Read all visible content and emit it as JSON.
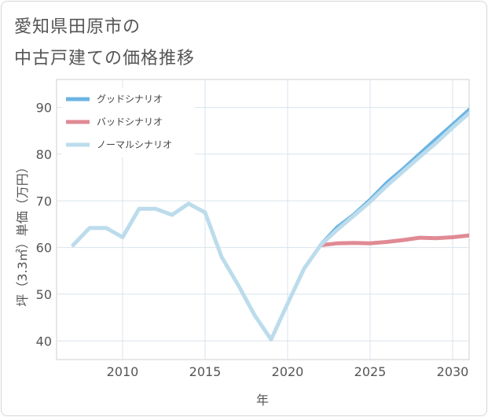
{
  "title_line1": "愛知県田原市の",
  "title_line2": "中古戸建ての価格推移",
  "chart_data": {
    "type": "line",
    "title": "愛知県田原市の中古戸建ての価格推移",
    "xlabel": "年",
    "ylabel": "坪（3.3㎡）単価（万円）",
    "xlim": [
      2006,
      2031
    ],
    "ylim": [
      36,
      96
    ],
    "xticks": [
      2010,
      2015,
      2020,
      2025,
      2030
    ],
    "yticks": [
      40,
      50,
      60,
      70,
      80,
      90
    ],
    "grid": true,
    "legend_position": "top-left",
    "series": [
      {
        "name": "グッドシナリオ",
        "color": "#6cb4e4",
        "x": [
          2022,
          2023,
          2024,
          2025,
          2026,
          2027,
          2028,
          2029,
          2030,
          2031
        ],
        "y": [
          60.5,
          64.3,
          67.0,
          70.2,
          73.8,
          76.8,
          80.0,
          83.2,
          86.3,
          89.5
        ]
      },
      {
        "name": "バッドシナリオ",
        "color": "#e08a94",
        "x": [
          2022,
          2023,
          2024,
          2025,
          2026,
          2027,
          2028,
          2029,
          2030,
          2031
        ],
        "y": [
          60.5,
          60.9,
          61.0,
          60.9,
          61.2,
          61.6,
          62.1,
          62.0,
          62.2,
          62.6
        ]
      },
      {
        "name": "ノーマルシナリオ",
        "color": "#bcdcec",
        "x": [
          2007,
          2008,
          2009,
          2010,
          2011,
          2012,
          2013,
          2014,
          2015,
          2016,
          2017,
          2018,
          2019,
          2020,
          2021,
          2022,
          2023,
          2024,
          2025,
          2026,
          2027,
          2028,
          2029,
          2030,
          2031
        ],
        "y": [
          60.5,
          64.2,
          64.2,
          62.2,
          68.3,
          68.3,
          67.0,
          69.4,
          67.5,
          58.0,
          52.0,
          45.5,
          40.3,
          48.0,
          55.5,
          60.5,
          63.8,
          66.8,
          69.8,
          73.2,
          76.3,
          79.4,
          82.4,
          85.7,
          88.8
        ]
      }
    ]
  }
}
